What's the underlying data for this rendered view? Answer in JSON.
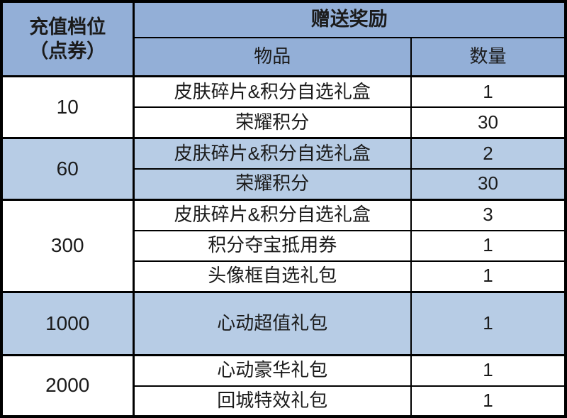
{
  "chart_data": {
    "type": "table",
    "title": "",
    "columns": [
      "充值档位（点券）",
      "赠送奖励 - 物品",
      "赠送奖励 - 数量"
    ],
    "rows": [
      [
        "10",
        "皮肤碎片&积分自选礼盒",
        1
      ],
      [
        "10",
        "荣耀积分",
        30
      ],
      [
        "60",
        "皮肤碎片&积分自选礼盒",
        2
      ],
      [
        "60",
        "荣耀积分",
        30
      ],
      [
        "300",
        "皮肤碎片&积分自选礼盒",
        3
      ],
      [
        "300",
        "积分夺宝抵用券",
        1
      ],
      [
        "300",
        "头像框自选礼包",
        1
      ],
      [
        "1000",
        "心动超值礼包",
        1
      ],
      [
        "2000",
        "心动豪华礼包",
        1
      ],
      [
        "2000",
        "回城特效礼包",
        1
      ]
    ],
    "layout_hints": {
      "header_bg": "#93AFD7",
      "highlight_row_bg": "#B7CCE5",
      "highlighted_tiers": [
        "60",
        "1000"
      ],
      "border_color": "#000000",
      "grid": true
    }
  },
  "table": {
    "header": {
      "tier_label_line1": "充值档位",
      "tier_label_line2": "（点券）",
      "reward_label": "赠送奖励",
      "item_label": "物品",
      "qty_label": "数量"
    },
    "tiers": [
      {
        "tier": "10",
        "rewards": [
          {
            "item": "皮肤碎片&积分自选礼盒",
            "qty": "1"
          },
          {
            "item": "荣耀积分",
            "qty": "30"
          }
        ]
      },
      {
        "tier": "60",
        "rewards": [
          {
            "item": "皮肤碎片&积分自选礼盒",
            "qty": "2"
          },
          {
            "item": "荣耀积分",
            "qty": "30"
          }
        ]
      },
      {
        "tier": "300",
        "rewards": [
          {
            "item": "皮肤碎片&积分自选礼盒",
            "qty": "3"
          },
          {
            "item": "积分夺宝抵用券",
            "qty": "1"
          },
          {
            "item": "头像框自选礼包",
            "qty": "1"
          }
        ]
      },
      {
        "tier": "1000",
        "rewards": [
          {
            "item": "心动超值礼包",
            "qty": "1"
          }
        ]
      },
      {
        "tier": "2000",
        "rewards": [
          {
            "item": "心动豪华礼包",
            "qty": "1"
          },
          {
            "item": "回城特效礼包",
            "qty": "1"
          }
        ]
      }
    ],
    "colors": {
      "header_bg": "#93AFD7",
      "highlight_bg": "#B7CCE5",
      "border": "#000000",
      "text": "#1b1b1b"
    }
  }
}
